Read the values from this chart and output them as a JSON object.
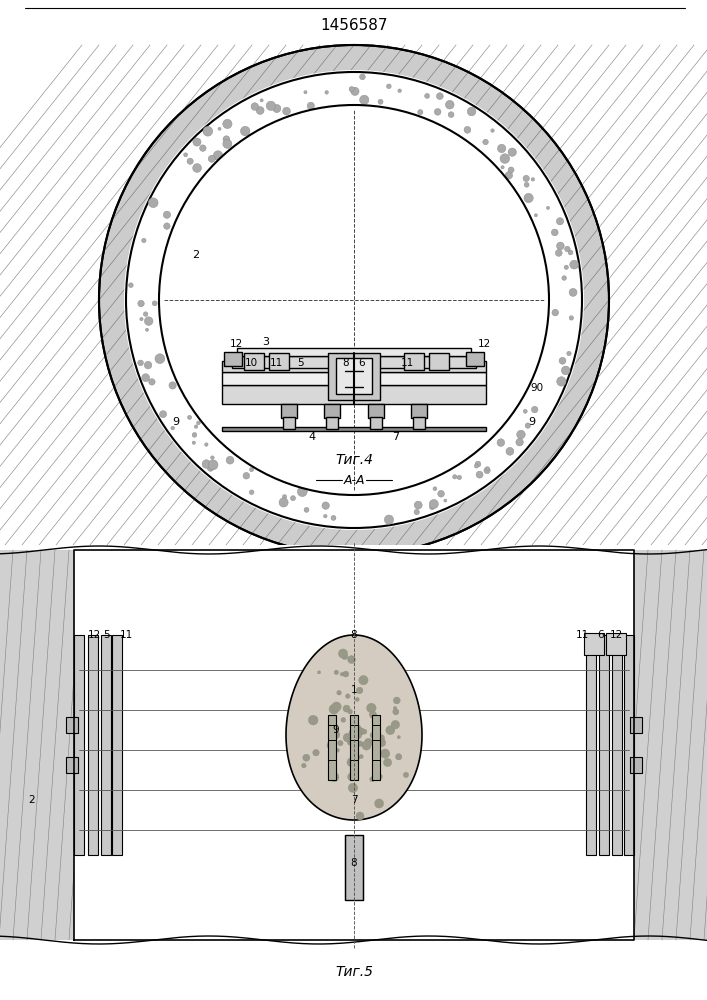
{
  "title": "1456587",
  "fig4_label": "Τиг.4",
  "fig5_label": "Τиг.5",
  "section_label": "A-A",
  "background": "#ffffff",
  "line_color": "#000000"
}
